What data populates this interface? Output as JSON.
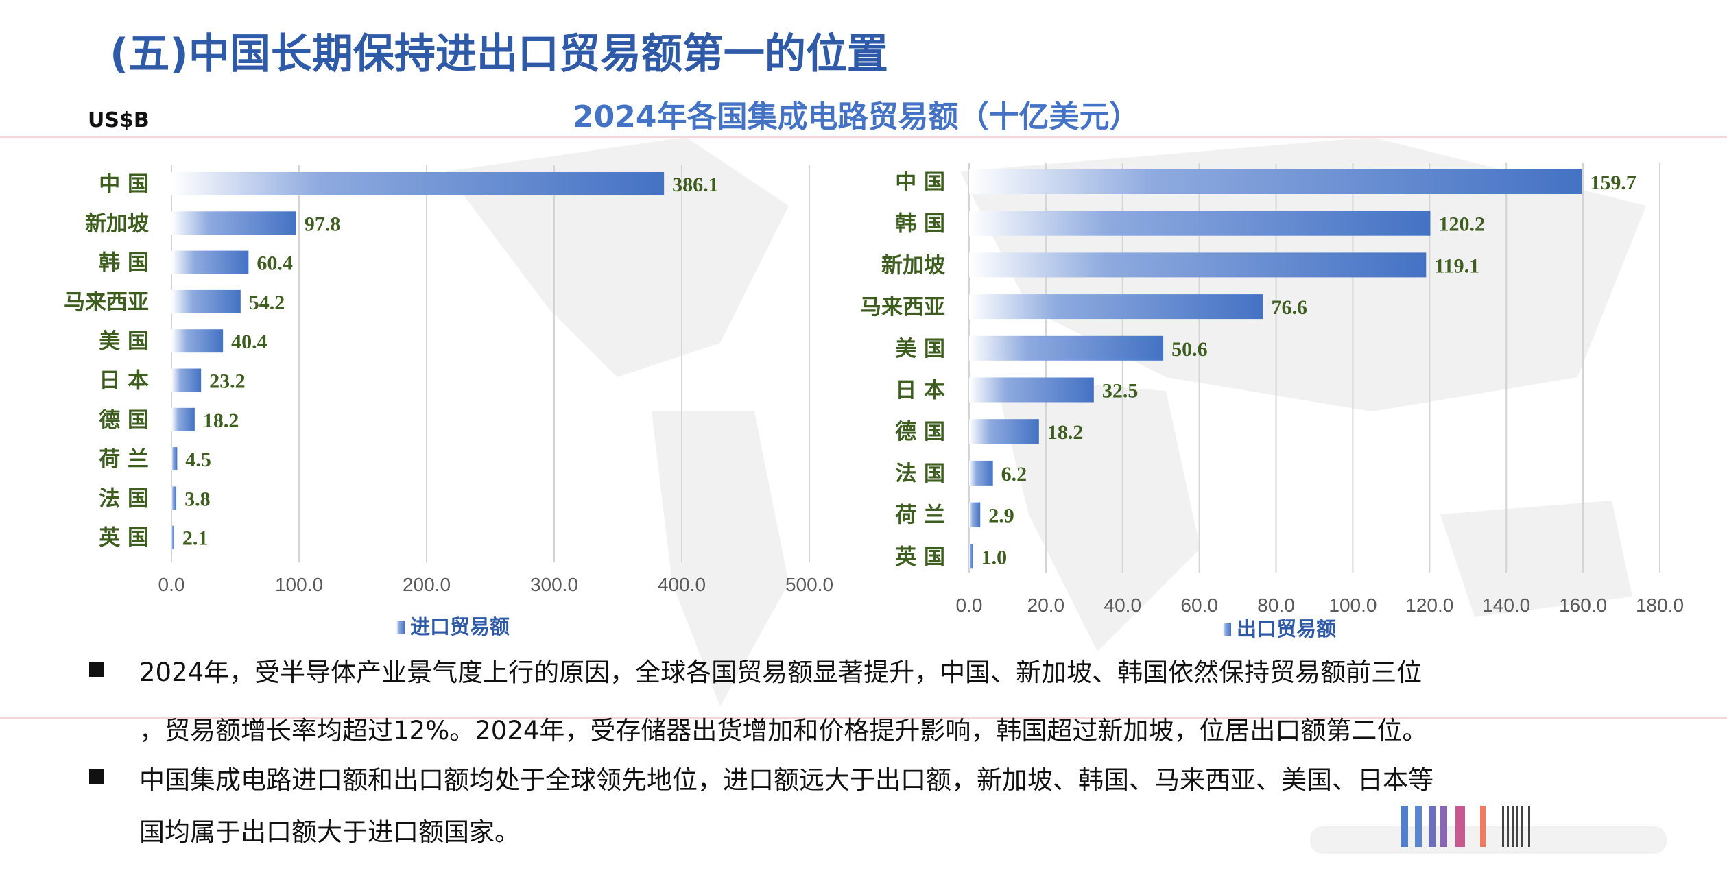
{
  "page_title": "(五)中国长期保持进出口贸易额第一的位置",
  "colors": {
    "title": "#2f5aa8",
    "bar": "#4472c4",
    "label": "#3d5e1e"
  },
  "chart_data": [
    {
      "type": "bar",
      "orientation": "horizontal",
      "title": "2024年各国集成电路贸易额（十亿美元）",
      "unit_label": "US$B",
      "legend": "进口贸易额",
      "legend_position": "bottom",
      "categories": [
        "中  国",
        "新加坡",
        "韩  国",
        "马来西亚",
        "美  国",
        "日  本",
        "德  国",
        "荷  兰",
        "法  国",
        "英  国"
      ],
      "values": [
        386.1,
        97.8,
        60.4,
        54.2,
        40.4,
        23.2,
        18.2,
        4.5,
        3.8,
        2.1
      ],
      "value_labels": [
        "386.1",
        "97.8",
        "60.4",
        "54.2",
        "40.4",
        "23.2",
        "18.2",
        "4.5",
        "3.8",
        "2.1"
      ],
      "xlim": [
        0,
        500
      ],
      "ticks": [
        "0.0",
        "100.0",
        "200.0",
        "300.0",
        "400.0",
        "500.0"
      ],
      "grid": true
    },
    {
      "type": "bar",
      "orientation": "horizontal",
      "legend": "出口贸易额",
      "legend_position": "bottom",
      "categories": [
        "中  国",
        "韩  国",
        "新加坡",
        "马来西亚",
        "美  国",
        "日  本",
        "德  国",
        "法  国",
        "荷  兰",
        "英  国"
      ],
      "values": [
        159.7,
        120.2,
        119.1,
        76.6,
        50.6,
        32.5,
        18.2,
        6.2,
        2.9,
        1.0
      ],
      "value_labels": [
        "159.7",
        "120.2",
        "119.1",
        "76.6",
        "50.6",
        "32.5",
        "18.2",
        "6.2",
        "2.9",
        "1.0"
      ],
      "xlim": [
        0,
        180
      ],
      "ticks": [
        "0.0",
        "20.0",
        "40.0",
        "60.0",
        "80.0",
        "100.0",
        "120.0",
        "140.0",
        "160.0",
        "180.0"
      ],
      "grid": true
    }
  ],
  "bullets": [
    {
      "lines": [
        "2024年，受半导体产业景气度上行的原因，全球各国贸易额显著提升，中国、新加坡、韩国依然保持贸易额前三位",
        "，贸易额增长率均超过12%。2024年，受存储器出货增加和价格提升影响，韩国超过新加坡，位居出口额第二位。"
      ]
    },
    {
      "lines": [
        "中国集成电路进口额和出口额均处于全球领先地位，进口额远大于出口额，新加坡、韩国、马来西亚、美国、日本等",
        "国均属于出口额大于进口额国家。"
      ]
    }
  ]
}
